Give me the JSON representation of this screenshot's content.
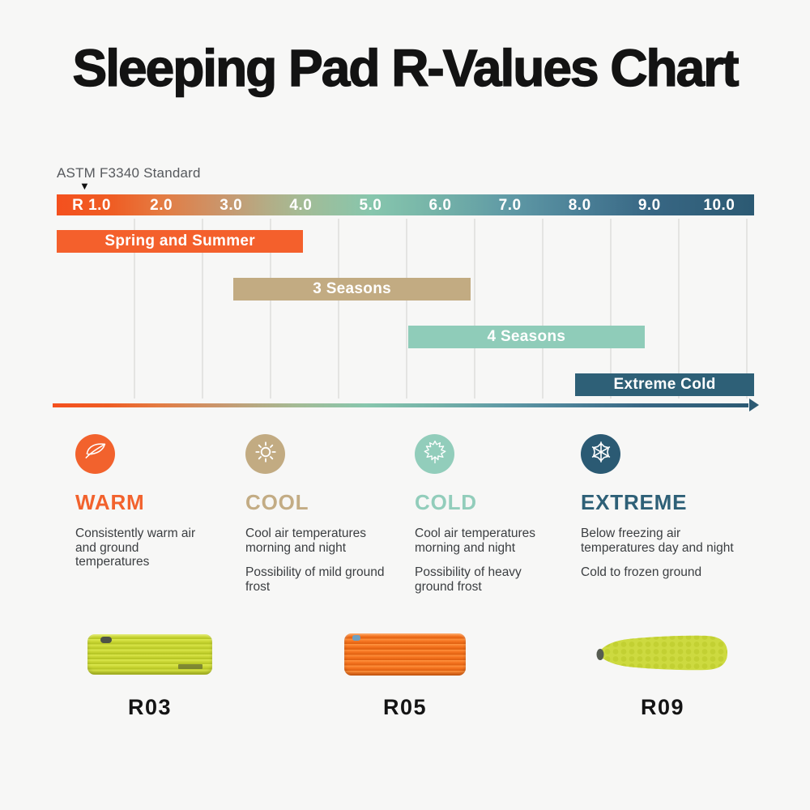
{
  "page": {
    "title": "Sleeping Pad R-Values Chart",
    "background": "#f7f7f6"
  },
  "chart_data": {
    "type": "bar",
    "subtype": "horizontal-range-bars",
    "axis_label": "ASTM F3340 Standard",
    "ticks": [
      "R 1.0",
      "2.0",
      "3.0",
      "4.0",
      "5.0",
      "6.0",
      "7.0",
      "8.0",
      "9.0",
      "10.0"
    ],
    "axis_range": [
      0.5,
      10.5
    ],
    "marker_value": 1.0,
    "grid": true,
    "scale_gradient": [
      "#f4501e",
      "#e47b42",
      "#c69a72",
      "#a4bb95",
      "#87c6ad",
      "#74b2a8",
      "#5f99a5",
      "#4b8097",
      "#2c5a73"
    ],
    "bars": [
      {
        "label": "Spring and Summer",
        "start": 0.5,
        "end": 4.0,
        "color": "#f4602c"
      },
      {
        "label": "3 Seasons",
        "start": 3.0,
        "end": 6.4,
        "color": "#c2ab82"
      },
      {
        "label": "4 Seasons",
        "start": 5.5,
        "end": 8.9,
        "color": "#8fccb9"
      },
      {
        "label": "Extreme Cold",
        "start": 7.9,
        "end": 10.5,
        "color": "#2e6077"
      }
    ]
  },
  "categories": [
    {
      "name": "WARM",
      "color": "#f2622d",
      "icon": "feather-icon",
      "lines": [
        "Consistently warm air and ground temperatures"
      ]
    },
    {
      "name": "COOL",
      "color": "#c3ac84",
      "icon": "sun-icon",
      "lines": [
        "Cool air temperatures morning and night",
        "Possibility of mild ground frost"
      ]
    },
    {
      "name": "COLD",
      "color": "#92cdbb",
      "icon": "maple-leaf-icon",
      "lines": [
        "Cool air temperatures morning and night",
        "Possibility of heavy ground frost"
      ]
    },
    {
      "name": "EXTREME",
      "color": "#2e6077",
      "icon": "snowflake-icon",
      "lines": [
        "Below freezing air temperatures day and night",
        "Cold to frozen ground"
      ]
    }
  ],
  "products": [
    {
      "label": "R03",
      "pad_color": "#c9d634",
      "shape": "rectangular"
    },
    {
      "label": "R05",
      "pad_color": "#f4731f",
      "shape": "rectangular"
    },
    {
      "label": "R09",
      "pad_color": "#c9d738",
      "shape": "mummy"
    }
  ]
}
